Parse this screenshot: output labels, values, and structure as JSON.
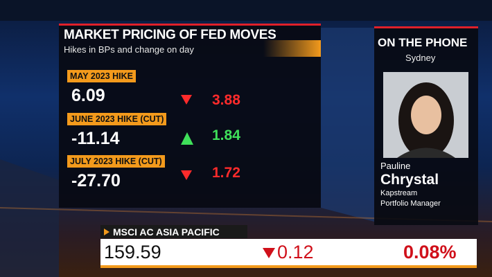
{
  "panel": {
    "title": "MARKET PRICING OF FED MOVES",
    "subtitle": "Hikes in BPs and change on day",
    "rows": [
      {
        "label": "MAY 2023 HIKE",
        "value": "6.09",
        "change": "3.88"
      },
      {
        "label": "JUNE 2023 HIKE (CUT)",
        "value": "-11.14",
        "change": "1.84"
      },
      {
        "label": "JULY 2023 HIKE (CUT)",
        "value": "-27.70",
        "change": "1.72"
      }
    ]
  },
  "guest": {
    "header": "ON THE PHONE",
    "location": "Sydney",
    "first_name": "Pauline",
    "last_name": "Chrystal",
    "company": "Kapstream",
    "role": "Portfolio Manager"
  },
  "ticker": {
    "name": "MSCI AC ASIA PACIFIC",
    "value": "159.59",
    "change": "0.12",
    "percent": "0.08%"
  }
}
